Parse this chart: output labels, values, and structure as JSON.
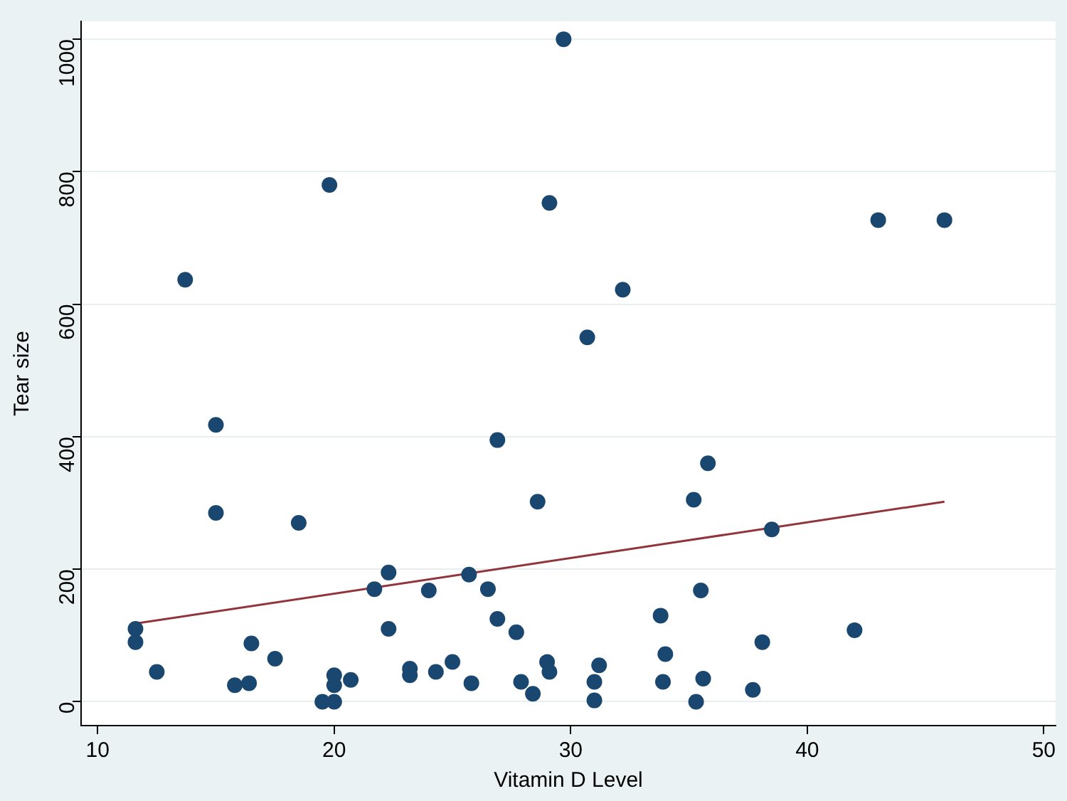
{
  "chart_data": {
    "type": "scatter",
    "xlabel": "Vitamin D Level",
    "ylabel": "Tear size",
    "xlim": [
      9.3,
      50.5
    ],
    "ylim": [
      -36,
      1027
    ],
    "xticks": [
      10,
      20,
      30,
      40,
      50
    ],
    "yticks": [
      0,
      200,
      400,
      600,
      800,
      1000
    ],
    "grid": "y",
    "marker": "circle",
    "legend": false,
    "series": [
      {
        "color": "#1a476f",
        "x": [
          11.6,
          11.6,
          12.5,
          13.7,
          15.0,
          15.0,
          15.8,
          16.4,
          16.5,
          17.5,
          18.5,
          19.5,
          19.8,
          20.0,
          20.0,
          20.0,
          20.7,
          21.7,
          22.3,
          22.3,
          23.2,
          23.2,
          24.0,
          24.3,
          25.0,
          25.7,
          25.8,
          26.5,
          26.9,
          26.9,
          27.7,
          27.9,
          28.4,
          28.6,
          29.0,
          29.1,
          29.1,
          29.7,
          30.7,
          31.0,
          31.0,
          31.2,
          32.2,
          33.8,
          34.0,
          33.9,
          35.2,
          35.3,
          35.5,
          35.6,
          35.8,
          37.7,
          38.1,
          38.5,
          42.0,
          43.0,
          45.8
        ],
        "values": [
          110,
          90,
          45,
          637,
          418,
          285,
          25,
          28,
          88,
          65,
          270,
          0,
          780,
          0,
          25,
          40,
          33,
          170,
          195,
          110,
          50,
          40,
          168,
          45,
          60,
          192,
          28,
          170,
          395,
          125,
          105,
          30,
          12,
          302,
          60,
          45,
          753,
          1000,
          550,
          30,
          2,
          55,
          622,
          130,
          72,
          30,
          305,
          0,
          168,
          35,
          360,
          18,
          90,
          260,
          108,
          727,
          727
        ]
      },
      {
        "type": "line",
        "color": "#90353b",
        "marker": "none",
        "x": [
          11.6,
          45.8
        ],
        "values": [
          118,
          302
        ]
      }
    ]
  }
}
